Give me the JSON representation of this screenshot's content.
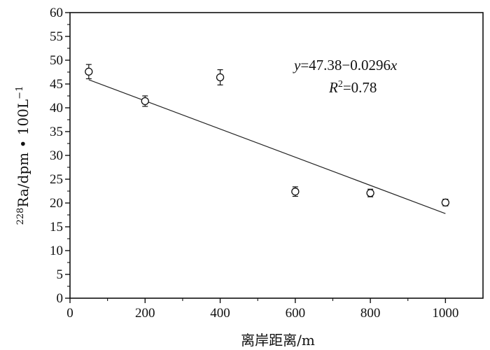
{
  "chart_data": {
    "type": "scatter",
    "title": "",
    "xlabel": "离岸距离/m",
    "ylabel": {
      "superscript": "228",
      "text": "Ra/dpm • 100L",
      "exponent": "−1"
    },
    "xlim": [
      0,
      1100
    ],
    "ylim": [
      0,
      60
    ],
    "x_ticks": [
      0,
      200,
      400,
      600,
      800,
      1000
    ],
    "y_ticks": [
      0,
      5,
      10,
      15,
      20,
      25,
      30,
      35,
      40,
      45,
      50,
      55,
      60
    ],
    "points": [
      {
        "x": 50,
        "y": 47.6,
        "err": 1.5
      },
      {
        "x": 200,
        "y": 41.4,
        "err": 1.1
      },
      {
        "x": 400,
        "y": 46.4,
        "err": 1.6
      },
      {
        "x": 600,
        "y": 22.4,
        "err": 1.0
      },
      {
        "x": 800,
        "y": 22.1,
        "err": 0.8
      },
      {
        "x": 1000,
        "y": 20.1,
        "err": 0.7
      }
    ],
    "fit_line": {
      "intercept": 47.38,
      "slope": -0.0296,
      "x_range": [
        50,
        1000
      ]
    },
    "annotation": {
      "equation_y": "y",
      "equation_rest": "=47.38−0.0296",
      "equation_x": "x",
      "r2_R": "R",
      "r2_sup": "2",
      "r2_value": "=0.78"
    },
    "grid": false,
    "legend": "none"
  }
}
